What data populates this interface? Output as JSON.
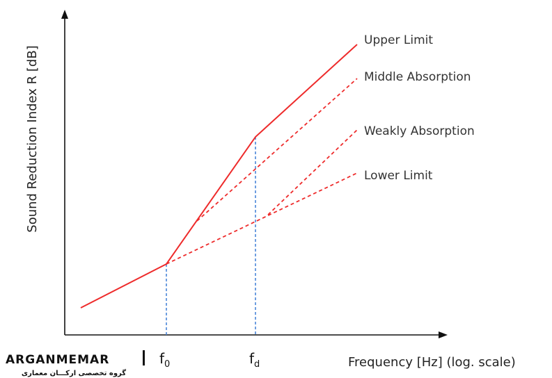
{
  "colors": {
    "axis": "#111111",
    "curve": "#ee2b2b",
    "guide": "#4a86d8"
  },
  "axes": {
    "y_title": "Sound Reduction Index R [dB]",
    "x_title": "Frequency [Hz] (log. scale)"
  },
  "ticks": {
    "f0": {
      "base": "f",
      "sub": "0"
    },
    "fd": {
      "base": "f",
      "sub": "d"
    }
  },
  "curves": {
    "upper": "Upper Limit",
    "middle": "Middle Absorption",
    "weak": "Weakly Absorption",
    "lower": "Lower Limit"
  },
  "logo": {
    "main": "ARGANMEMAR",
    "sub": "گروه تخصصی ارکـــان معماری"
  }
}
